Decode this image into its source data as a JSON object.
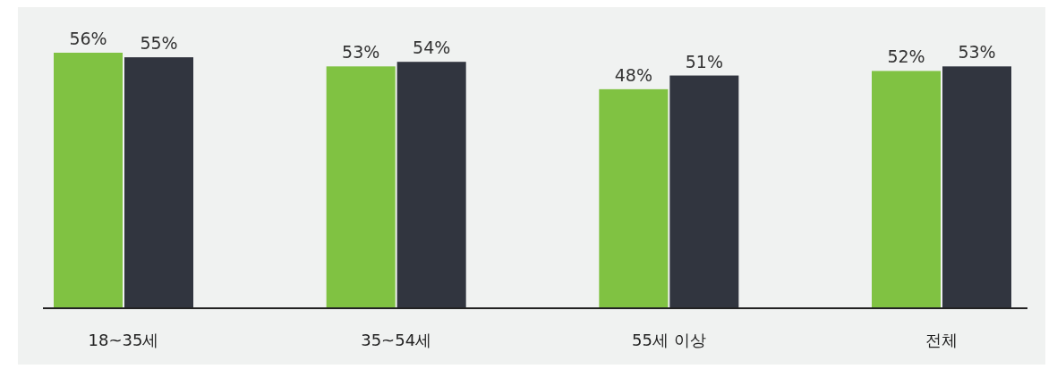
{
  "chart_data": {
    "type": "bar",
    "categories": [
      "18~35세",
      "35~54세",
      "55세 이상",
      "전체"
    ],
    "series": [
      {
        "color": "#80c242",
        "values": [
          56,
          53,
          48,
          52
        ],
        "value_labels": [
          "56%",
          "53%",
          "48%",
          "52%"
        ]
      },
      {
        "color": "#31353f",
        "values": [
          55,
          54,
          51,
          53
        ],
        "value_labels": [
          "55%",
          "54%",
          "51%",
          "53%"
        ]
      }
    ]
  }
}
